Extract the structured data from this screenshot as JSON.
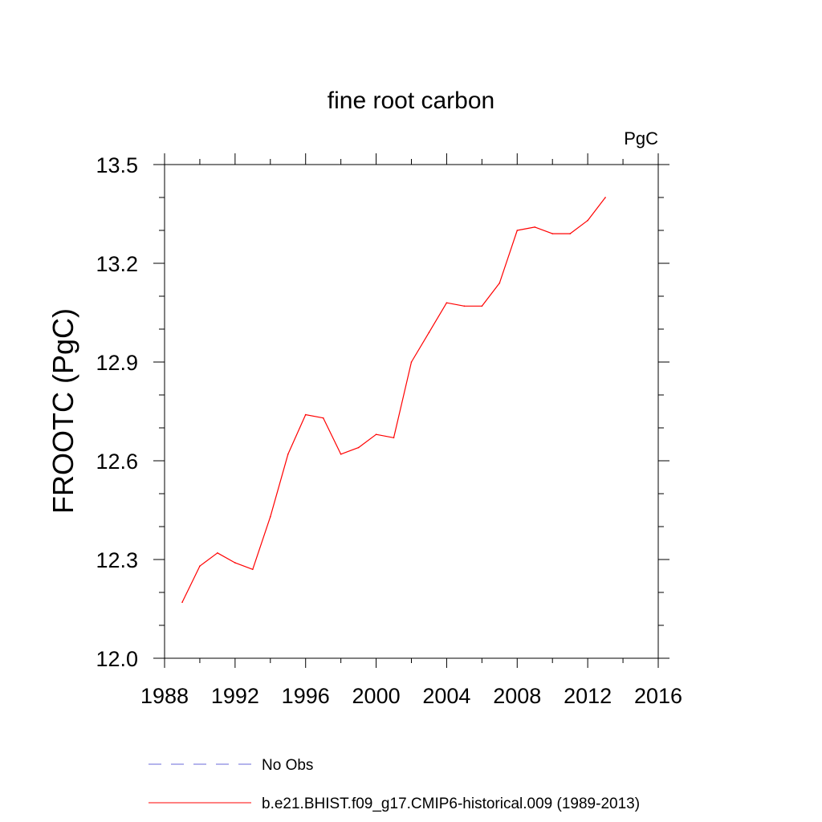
{
  "chart_data": {
    "type": "line",
    "title": "fine root carbon",
    "units_label": "PgC",
    "ylabel": "FROOTC  (PgC)",
    "xlabel": "",
    "xlim": [
      1988,
      2016
    ],
    "ylim": [
      12.0,
      13.5
    ],
    "x_ticks": [
      1988,
      1992,
      1996,
      2000,
      2004,
      2008,
      2012,
      2016
    ],
    "y_ticks": [
      12.0,
      12.3,
      12.6,
      12.9,
      13.2,
      13.5
    ],
    "x_tick_labels": [
      "1988",
      "1992",
      "1996",
      "2000",
      "2004",
      "2008",
      "2012",
      "2016"
    ],
    "y_tick_labels": [
      "12.0",
      "12.3",
      "12.6",
      "12.9",
      "13.2",
      "13.5"
    ],
    "x_minor_step": 2,
    "y_minor_step": 0.1,
    "grid": false,
    "series": [
      {
        "name": "b.e21.BHIST.f09_g17.CMIP6-historical.009 (1989-2013)",
        "color": "#ff0000",
        "style": "solid",
        "x": [
          1989,
          1990,
          1991,
          1992,
          1993,
          1994,
          1995,
          1996,
          1997,
          1998,
          1999,
          2000,
          2001,
          2002,
          2003,
          2004,
          2005,
          2006,
          2007,
          2008,
          2009,
          2010,
          2011,
          2012,
          2013
        ],
        "y": [
          12.17,
          12.28,
          12.32,
          12.29,
          12.27,
          12.43,
          12.62,
          12.74,
          12.73,
          12.62,
          12.64,
          12.68,
          12.67,
          12.9,
          12.99,
          13.08,
          13.07,
          13.07,
          13.14,
          13.3,
          13.31,
          13.29,
          13.29,
          13.33,
          13.4
        ]
      }
    ],
    "legend": {
      "placement": "bottom",
      "entries": [
        {
          "label": "No Obs",
          "color": "#6a6ad8",
          "style": "dashed"
        },
        {
          "label": "b.e21.BHIST.f09_g17.CMIP6-historical.009 (1989-2013)",
          "color": "#ff0000",
          "style": "solid"
        }
      ]
    }
  }
}
